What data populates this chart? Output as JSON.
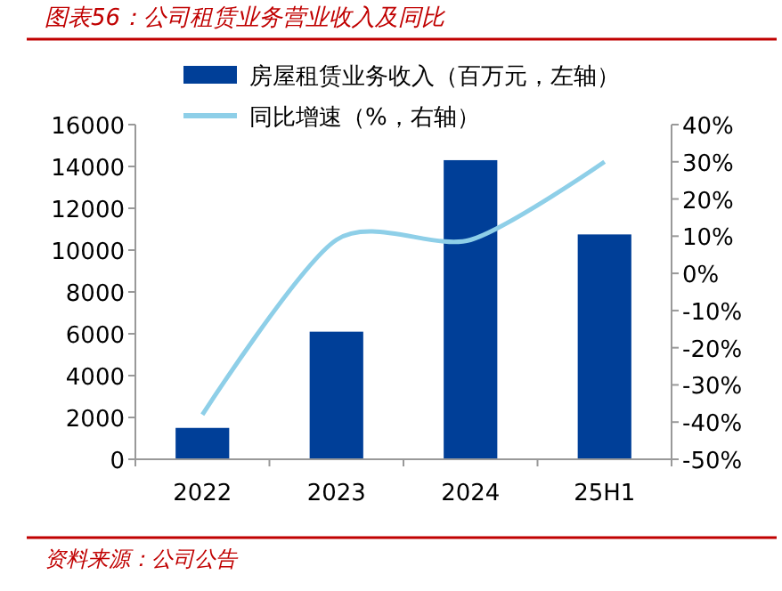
{
  "chart_data": {
    "type": "bar",
    "title": "图表56：公司租赁业务营业收入及同比",
    "categories": [
      "2022",
      "2023",
      "2024",
      "25H1"
    ],
    "series": [
      {
        "name": "房屋租赁业务收入（百万元，左轴）",
        "color": "#003f98",
        "values": [
          1500,
          6100,
          14300,
          10750
        ]
      },
      {
        "name": "同比增速（%，右轴）",
        "type": "line",
        "axis": "y2",
        "color": "#8ecfe8",
        "values": [
          -38,
          9,
          9,
          30
        ]
      }
    ],
    "ylim": [
      0,
      16000
    ],
    "yticks": [
      0,
      2000,
      4000,
      6000,
      8000,
      10000,
      12000,
      14000,
      16000
    ],
    "y2lim": [
      -50,
      40
    ],
    "y2ticks": [
      {
        "value": -50,
        "label": "-50%"
      },
      {
        "value": -40,
        "label": "-40%"
      },
      {
        "value": -30,
        "label": "-30%"
      },
      {
        "value": -20,
        "label": "-20%"
      },
      {
        "value": -10,
        "label": "-10%"
      },
      {
        "value": 0,
        "label": "0%"
      },
      {
        "value": 10,
        "label": "10%"
      },
      {
        "value": 20,
        "label": "20%"
      },
      {
        "value": 30,
        "label": "30%"
      },
      {
        "value": 40,
        "label": "40%"
      }
    ],
    "legend": "top",
    "grid": false,
    "marker": "none",
    "annotations": [
      "资料来源：公司公告"
    ]
  }
}
